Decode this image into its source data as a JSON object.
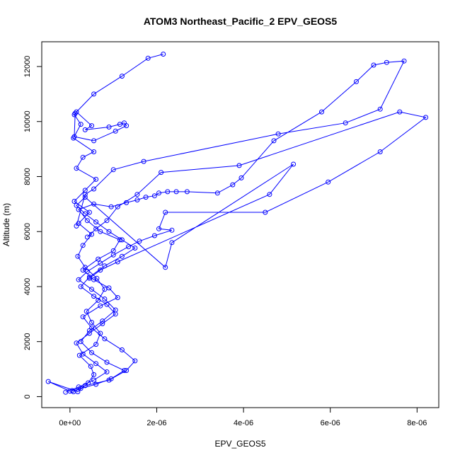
{
  "chart_data": {
    "type": "line",
    "title": "ATOM3 Northeast_Pacific_2 EPV_GEOS5",
    "xlabel": "EPV_GEOS5",
    "ylabel": "Altitude (m)",
    "xlim": [
      -6.5e-07,
      8.5e-06
    ],
    "ylim": [
      -400,
      12900
    ],
    "x_ticks": [
      0,
      2e-06,
      4e-06,
      6e-06,
      8e-06
    ],
    "x_tick_labels": [
      "0e+00",
      "2e-06",
      "4e-06",
      "6e-06",
      "8e-06"
    ],
    "y_ticks": [
      0,
      2000,
      4000,
      6000,
      8000,
      10000,
      12000
    ],
    "y_tick_labels": [
      "0",
      "2000",
      "4000",
      "6000",
      "8000",
      "10000",
      "12000"
    ],
    "grid": false,
    "line_color": "#0000ff",
    "marker": "open-circle",
    "series": [
      {
        "x": [
          0.0,
          -5e-07,
          1.8e-07,
          4.2e-07,
          5.5e-07,
          4.8e-07,
          2.2e-07,
          6e-07,
          7e-07,
          5e-07,
          3.8e-07,
          6.5e-07,
          8e-07,
          6.2e-07,
          3.5e-07,
          1.8e-07,
          3e-07,
          5e-07,
          2e-07,
          4.5e-07,
          1e-07,
          3.5e-07,
          6e-07,
          1.5e-07,
          3e-07,
          5.5e-07,
          8e-08,
          2.5e-07,
          1e-07,
          1.5e-07,
          5e-07,
          3.5e-07,
          9e-07,
          1.15e-06,
          1.25e-06,
          1.3e-06,
          1.05e-06,
          5.5e-07,
          1e-07,
          1.2e-07,
          5.5e-07,
          1.2e-06,
          1.8e-06,
          2.15e-06
        ],
        "y": [
          200,
          550,
          180,
          500,
          800,
          1100,
          1500,
          1900,
          2300,
          2700,
          3100,
          3500,
          3900,
          4300,
          4700,
          5100,
          5500,
          5900,
          6300,
          6700,
          7100,
          7500,
          7900,
          8300,
          8700,
          8900,
          9400,
          9900,
          10250,
          10350,
          9850,
          9700,
          9800,
          9900,
          9950,
          9850,
          9650,
          9300,
          9450,
          10300,
          11000,
          11650,
          12300,
          12450
        ]
      },
      {
        "x": [
          5e-08,
          3.5e-07,
          9e-07,
          1.3e-06,
          1.5e-06,
          1.2e-06,
          8e-07,
          5e-07,
          3e-07,
          7e-07,
          1.1e-06,
          9e-07,
          5.5e-07,
          3e-07,
          6.5e-07,
          1e-06,
          1.15e-06,
          7e-07,
          4e-07,
          2e-07,
          5.5e-07,
          9.5e-07,
          1.3e-06,
          1.55e-06,
          1.75e-06,
          1.95e-06,
          2.05e-06,
          2.25e-06,
          2.45e-06,
          2.7e-06,
          3.4e-06,
          3.75e-06,
          3.95e-06,
          4.7e-06,
          5.8e-06,
          6.6e-06,
          7e-06,
          7.3e-06,
          7.7e-06,
          7.15e-06,
          6.35e-06,
          4.8e-06,
          1.7e-06,
          1e-06,
          5.5e-07,
          3.5e-07,
          1.5e-07
        ],
        "y": [
          220,
          400,
          600,
          950,
          1300,
          1700,
          2100,
          2500,
          2900,
          3300,
          3600,
          3950,
          4250,
          4600,
          5000,
          5300,
          5700,
          6000,
          6400,
          6800,
          7000,
          6900,
          7050,
          7150,
          7250,
          7300,
          7400,
          7450,
          7450,
          7450,
          7400,
          7700,
          7950,
          9300,
          10350,
          11450,
          12050,
          12150,
          12200,
          10450,
          9950,
          9550,
          8550,
          8250,
          7550,
          7350,
          6200
        ]
      },
      {
        "x": [
          8e-08,
          2.5e-07,
          6e-07,
          9.5e-07,
          1.25e-06,
          8.5e-07,
          5e-07,
          2.5e-07,
          4.5e-07,
          7.5e-07,
          1.05e-06,
          8e-07,
          5e-07,
          2e-07,
          4e-07,
          7e-07,
          1e-06,
          1.35e-06,
          1.6e-06,
          1.95e-06,
          2.35e-06,
          2.05e-06,
          2.2e-06,
          4.5e-06,
          5.95e-06,
          7.15e-06,
          8.2e-06,
          7.6e-06,
          3.9e-06,
          2.1e-06,
          1.55e-06,
          1.1e-06,
          8.5e-07,
          6e-07,
          4e-07
        ],
        "y": [
          180,
          300,
          450,
          650,
          950,
          1250,
          1600,
          2000,
          2400,
          2750,
          3150,
          3550,
          3900,
          4250,
          4550,
          4850,
          5150,
          5450,
          5650,
          5850,
          6050,
          6100,
          6700,
          6700,
          7800,
          8900,
          10150,
          10350,
          8400,
          8150,
          7350,
          6900,
          6400,
          6100,
          5800
        ]
      },
      {
        "x": [
          -1e-07,
          2e-07,
          5.5e-07,
          8.5e-07,
          6e-07,
          3e-07,
          1.5e-07,
          4.5e-07,
          7.5e-07,
          1.05e-06,
          8.5e-07,
          5.5e-07,
          2.5e-07,
          4.5e-07,
          8e-07,
          1.2e-06,
          1.5e-06,
          1.2e-06,
          9e-07,
          6e-07,
          3.5e-07,
          1.5e-07,
          3.5e-07,
          2.2e-06,
          2.35e-06,
          5.15e-06,
          4.6e-06,
          1.1e-06,
          7e-07,
          4.5e-07
        ],
        "y": [
          160,
          350,
          600,
          900,
          1200,
          1550,
          1950,
          2300,
          2650,
          3000,
          3350,
          3650,
          4000,
          4350,
          4750,
          5100,
          5400,
          5700,
          6000,
          6350,
          6650,
          6950,
          7250,
          4700,
          5600,
          8450,
          7350,
          4900,
          4600,
          4300
        ]
      }
    ]
  }
}
